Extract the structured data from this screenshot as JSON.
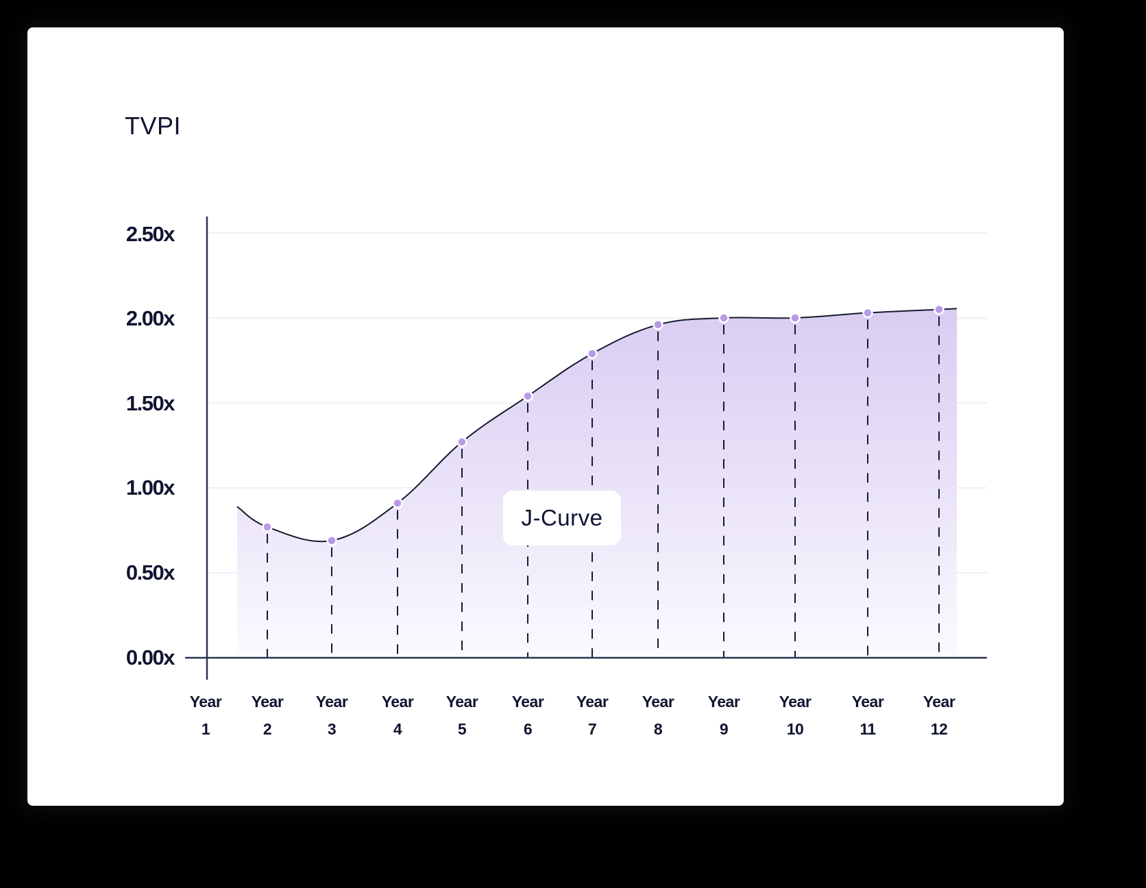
{
  "chart_data": {
    "type": "area",
    "title": "",
    "ylabel": "TVPI",
    "xlabel": "",
    "categories": [
      "Year 1",
      "Year 2",
      "Year 3",
      "Year 4",
      "Year 5",
      "Year 6",
      "Year 7",
      "Year 8",
      "Year 9",
      "Year 10",
      "Year 11",
      "Year 12"
    ],
    "x_tick_labels": [
      {
        "line1": "Year",
        "line2": "1"
      },
      {
        "line1": "Year",
        "line2": "2"
      },
      {
        "line1": "Year",
        "line2": "3"
      },
      {
        "line1": "Year",
        "line2": "4"
      },
      {
        "line1": "Year",
        "line2": "5"
      },
      {
        "line1": "Year",
        "line2": "6"
      },
      {
        "line1": "Year",
        "line2": "7"
      },
      {
        "line1": "Year",
        "line2": "8"
      },
      {
        "line1": "Year",
        "line2": "9"
      },
      {
        "line1": "Year",
        "line2": "10"
      },
      {
        "line1": "Year",
        "line2": "11"
      },
      {
        "line1": "Year",
        "line2": "12"
      }
    ],
    "y_tick_labels": [
      "0.00x",
      "0.50x",
      "1.00x",
      "1.50x",
      "2.00x",
      "2.50x"
    ],
    "ylim": [
      0,
      2.5
    ],
    "grid": true,
    "legend": null,
    "series": [
      {
        "name": "TVPI",
        "marker_years": [
          "Year 2",
          "Year 3",
          "Year 4",
          "Year 5",
          "Year 6",
          "Year 7",
          "Year 8",
          "Year 9",
          "Year 10",
          "Year 11",
          "Year 12"
        ],
        "values": [
          0.77,
          0.69,
          0.91,
          1.27,
          1.54,
          1.79,
          1.96,
          2.0,
          2.0,
          2.03,
          2.05
        ],
        "curve_start_value": 0.89,
        "color": "#b89ae6",
        "fill_top": "#ddd1f3",
        "fill_bottom": "#fbfaff"
      }
    ],
    "annotations": [
      {
        "text": "J-Curve",
        "near": "Year 6",
        "value": 0.82
      }
    ]
  },
  "colors": {
    "text": "#0f1430",
    "axis": "#2a3450",
    "grid": "#f0f0f5",
    "marker": "#b89ae6",
    "line": "#151a30"
  }
}
